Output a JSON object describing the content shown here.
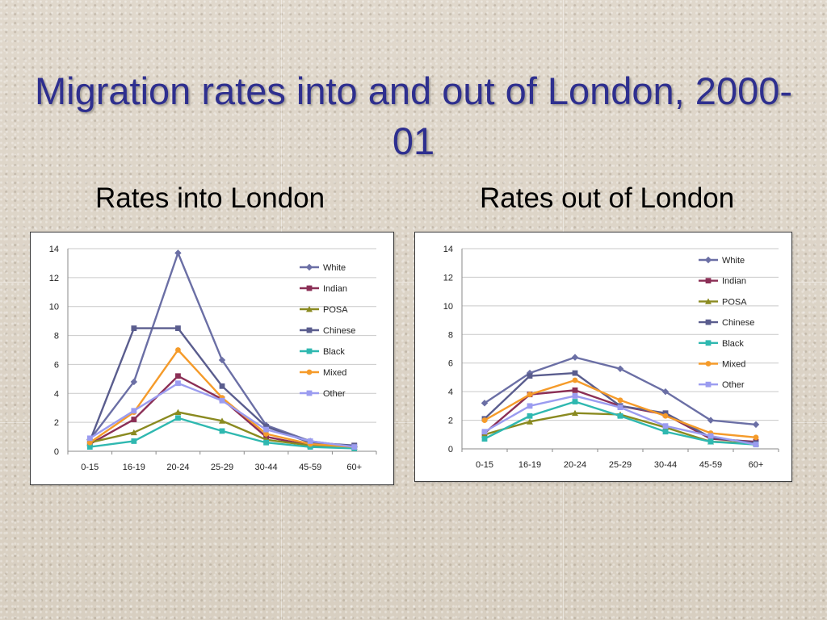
{
  "title": "Migration rates into and out of London, 2000-01",
  "charts": [
    {
      "subtitle": "Rates into London"
    },
    {
      "subtitle": "Rates out of London"
    }
  ],
  "chart_data": [
    {
      "type": "line",
      "categories": [
        "0-15",
        "16-19",
        "20-24",
        "25-29",
        "30-44",
        "45-59",
        "60+"
      ],
      "ylim": [
        0,
        14
      ],
      "yticks": [
        0,
        2,
        4,
        6,
        8,
        10,
        12,
        14
      ],
      "grid": true,
      "legend": "right",
      "series": [
        {
          "name": "White",
          "color": "#6b6fa5",
          "marker": "diamond",
          "values": [
            0.8,
            4.8,
            13.7,
            6.3,
            1.8,
            0.7,
            0.3
          ]
        },
        {
          "name": "Indian",
          "color": "#8b2f56",
          "marker": "square",
          "values": [
            0.5,
            2.2,
            5.2,
            3.6,
            1.0,
            0.4,
            0.4
          ]
        },
        {
          "name": "POSA",
          "color": "#8a8a20",
          "marker": "triangle",
          "values": [
            0.6,
            1.3,
            2.7,
            2.1,
            0.8,
            0.4,
            0.3
          ]
        },
        {
          "name": "Chinese",
          "color": "#5a5d8e",
          "marker": "square",
          "values": [
            0.7,
            8.5,
            8.5,
            4.5,
            1.7,
            0.6,
            0.4
          ]
        },
        {
          "name": "Black",
          "color": "#2fb8b0",
          "marker": "square",
          "values": [
            0.3,
            0.7,
            2.3,
            1.4,
            0.6,
            0.3,
            0.2
          ]
        },
        {
          "name": "Mixed",
          "color": "#f59b2a",
          "marker": "circle",
          "values": [
            0.6,
            2.7,
            7.0,
            3.7,
            1.2,
            0.5,
            0.3
          ]
        },
        {
          "name": "Other",
          "color": "#9b9cf0",
          "marker": "square",
          "values": [
            0.9,
            2.8,
            4.7,
            3.5,
            1.5,
            0.7,
            0.3
          ]
        }
      ]
    },
    {
      "type": "line",
      "categories": [
        "0-15",
        "16-19",
        "20-24",
        "25-29",
        "30-44",
        "45-59",
        "60+"
      ],
      "ylim": [
        0,
        14
      ],
      "yticks": [
        0,
        2,
        4,
        6,
        8,
        10,
        12,
        14
      ],
      "grid": true,
      "legend": "right",
      "series": [
        {
          "name": "White",
          "color": "#6b6fa5",
          "marker": "diamond",
          "values": [
            3.2,
            5.3,
            6.4,
            5.6,
            4.0,
            2.0,
            1.7
          ]
        },
        {
          "name": "Indian",
          "color": "#8b2f56",
          "marker": "square",
          "values": [
            1.1,
            3.8,
            4.1,
            3.0,
            2.4,
            0.7,
            0.5
          ]
        },
        {
          "name": "POSA",
          "color": "#8a8a20",
          "marker": "triangle",
          "values": [
            1.0,
            1.9,
            2.5,
            2.4,
            1.5,
            0.5,
            0.4
          ]
        },
        {
          "name": "Chinese",
          "color": "#5a5d8e",
          "marker": "square",
          "values": [
            2.1,
            5.1,
            5.3,
            3.0,
            2.5,
            0.8,
            0.4
          ]
        },
        {
          "name": "Black",
          "color": "#2fb8b0",
          "marker": "square",
          "values": [
            0.7,
            2.3,
            3.3,
            2.3,
            1.2,
            0.5,
            0.3
          ]
        },
        {
          "name": "Mixed",
          "color": "#f59b2a",
          "marker": "circle",
          "values": [
            2.0,
            3.8,
            4.8,
            3.4,
            2.3,
            1.1,
            0.8
          ]
        },
        {
          "name": "Other",
          "color": "#9b9cf0",
          "marker": "square",
          "values": [
            1.2,
            3.0,
            3.7,
            2.9,
            1.6,
            0.9,
            0.3
          ]
        }
      ]
    }
  ]
}
